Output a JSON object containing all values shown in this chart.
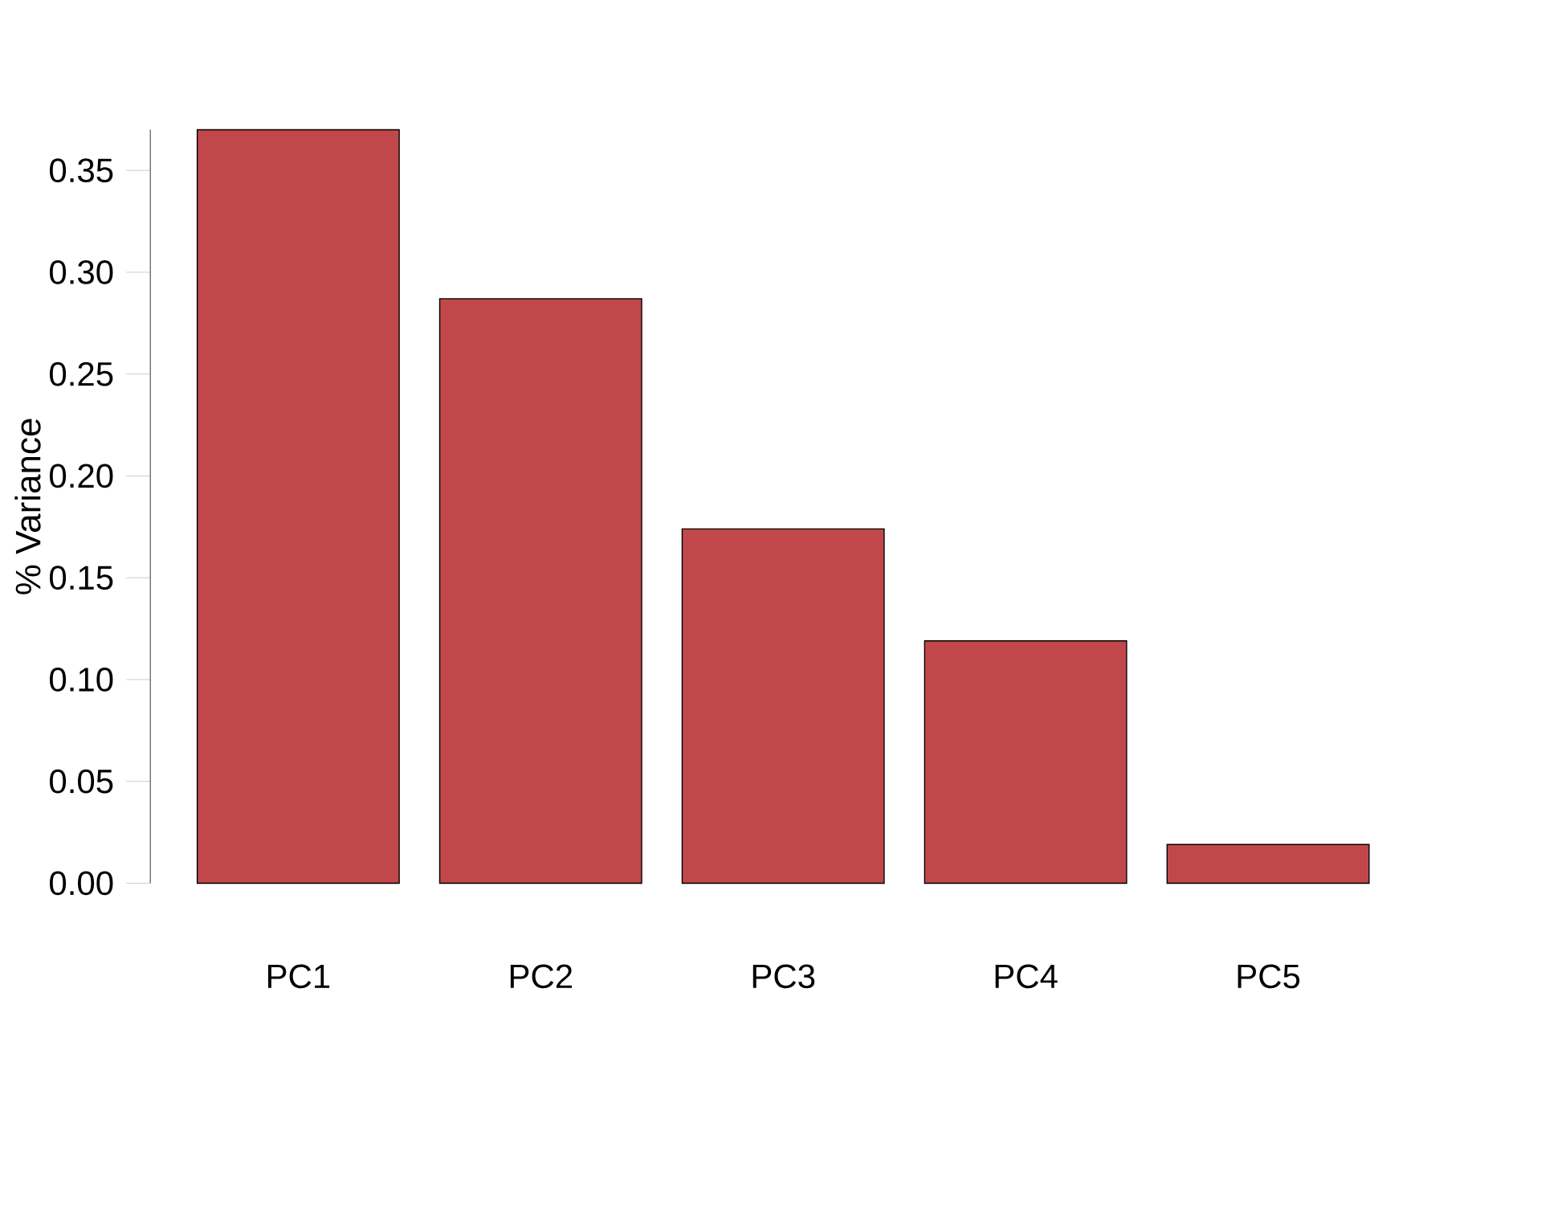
{
  "chart_data": {
    "type": "bar",
    "ylabel": "% Variance",
    "categories": [
      "PC1",
      "PC2",
      "PC3",
      "PC4",
      "PC5"
    ],
    "values": [
      0.37,
      0.287,
      0.174,
      0.119,
      0.019
    ],
    "color": "#c0484a",
    "ylim": [
      0,
      0.37
    ],
    "yticks": [
      {
        "value": 0,
        "label": "0.00"
      },
      {
        "value": 0.05,
        "label": "0.05"
      },
      {
        "value": 0.1,
        "label": "0.10"
      },
      {
        "value": 0.15,
        "label": "0.15"
      },
      {
        "value": 0.2,
        "label": "0.20"
      },
      {
        "value": 0.25,
        "label": "0.25"
      },
      {
        "value": 0.3,
        "label": "0.30"
      },
      {
        "value": 0.35,
        "label": "0.35"
      }
    ]
  }
}
